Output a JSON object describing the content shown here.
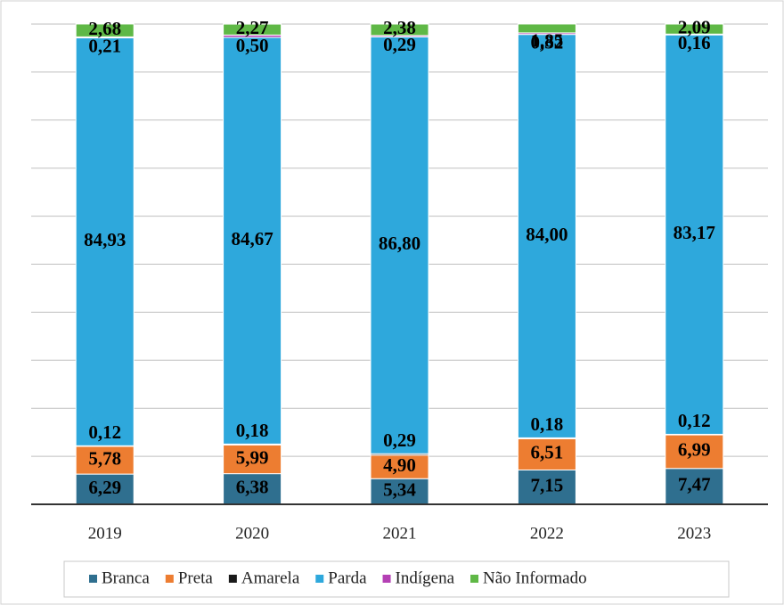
{
  "chart_data": {
    "type": "stacked_bar",
    "categories": [
      "2019",
      "2020",
      "2021",
      "2022",
      "2023"
    ],
    "series": [
      {
        "name": "Branca",
        "color": "#2f6f8f",
        "values": [
          6.29,
          6.38,
          5.34,
          7.15,
          7.47
        ],
        "value_labels": [
          "6,29",
          "6,38",
          "5,34",
          "7,15",
          "7,47"
        ]
      },
      {
        "name": "Preta",
        "color": "#ed7d31",
        "values": [
          5.78,
          5.99,
          4.9,
          6.51,
          6.99
        ],
        "value_labels": [
          "5,78",
          "5,99",
          "4,90",
          "6,51",
          "6,99"
        ]
      },
      {
        "name": "Amarela",
        "color": "#1a1a1a",
        "values": [
          0.12,
          0.18,
          0.29,
          0.18,
          0.12
        ],
        "value_labels": [
          "0,12",
          "0,18",
          "0,29",
          "0,18",
          "0,12"
        ]
      },
      {
        "name": "Parda",
        "color": "#2ea8dc",
        "values": [
          84.93,
          84.67,
          86.8,
          84.0,
          83.17
        ],
        "value_labels": [
          "84,93",
          "84,67",
          "86,80",
          "84,00",
          "83,17"
        ]
      },
      {
        "name": "Indígena",
        "color": "#b440b4",
        "values": [
          0.21,
          0.5,
          0.29,
          0.32,
          0.16
        ],
        "value_labels": [
          "0,21",
          "0,50",
          "0,29",
          "0,32",
          "0,16"
        ]
      },
      {
        "name": "Não Informado",
        "color": "#5fb846",
        "values": [
          2.68,
          2.27,
          2.38,
          1.85,
          2.09
        ],
        "value_labels": [
          "2,68",
          "2,27",
          "2,38",
          "1,85",
          "2,09"
        ]
      }
    ],
    "ylim": [
      0,
      100
    ],
    "yticks": [
      0,
      10,
      20,
      30,
      40,
      50,
      60,
      70,
      80,
      90,
      100
    ],
    "grid": true,
    "legend": "bottom"
  }
}
